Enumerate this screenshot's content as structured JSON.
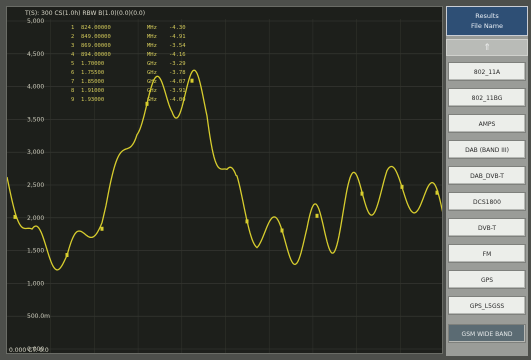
{
  "header": {
    "text": "T(S): 300  CS(1.0h) RBW  B(1.0)(0.0)(0.0)"
  },
  "y_axis": {
    "labels": [
      "5,000",
      "4,500",
      "4,000",
      "3,500",
      "3,000",
      "2,500",
      "2,000",
      "1,500",
      "1,000",
      "500.0m",
      "0.000"
    ]
  },
  "markers": {
    "rows": [
      {
        "n": "1",
        "freq": "824.00000",
        "unit": "MHz",
        "level": "-4.30"
      },
      {
        "n": "2",
        "freq": "849.00000",
        "unit": "MHz",
        "level": "-4.91"
      },
      {
        "n": "3",
        "freq": "869.00000",
        "unit": "MHz",
        "level": "-3.54"
      },
      {
        "n": "4",
        "freq": "894.00000",
        "unit": "MHz",
        "level": "-4.16"
      },
      {
        "n": "5",
        "freq": "1.70000",
        "unit": "GHz",
        "level": "-3.29"
      },
      {
        "n": "6",
        "freq": "1.75500",
        "unit": "GHz",
        "level": "-3.78"
      },
      {
        "n": "7",
        "freq": "1.85000",
        "unit": "GHz",
        "level": "-4.07"
      },
      {
        "n": "8",
        "freq": "1.91000",
        "unit": "GHz",
        "level": "-3.91"
      },
      {
        "n": "9",
        "freq": "1.93000",
        "unit": "GHz",
        "level": "-4.00"
      }
    ]
  },
  "bottom_left": {
    "text": "0.000  CT: 0.0"
  },
  "trace_color": "#d7cd2e",
  "panel": {
    "title_line1": "Results",
    "title_line2": "File Name",
    "up_arrow": "⇑",
    "buttons": [
      "802_11A",
      "802_11BG",
      "AMPS",
      "DAB (BAND III)",
      "DAB_DVB-T",
      "DCS1800",
      "DVB-T",
      "FM",
      "GPS",
      "GPS_L5GSS",
      "GSM WIDE BAND"
    ]
  }
}
